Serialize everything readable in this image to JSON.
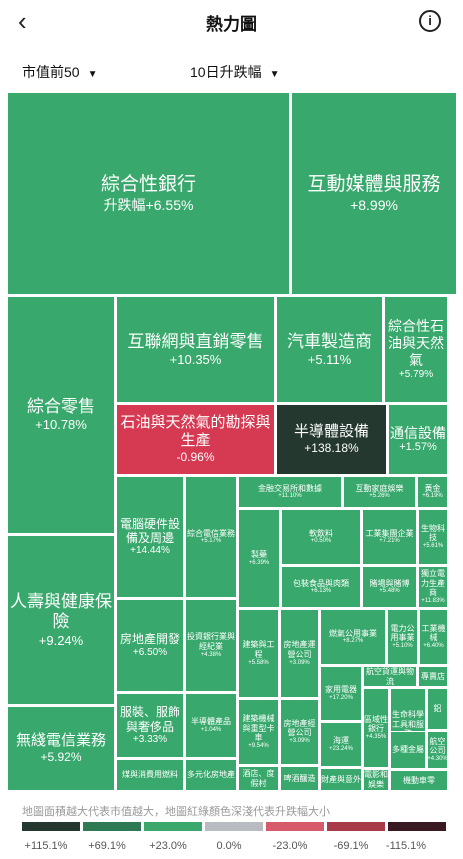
{
  "header": {
    "title": "熱力圖",
    "back_icon": "‹",
    "info_icon": "i"
  },
  "filters": {
    "market_cap": "市值前50",
    "period": "10日升跌幅"
  },
  "tiles": [
    {
      "name": "綜合性銀行",
      "value": "升跌幅+6.55%"
    },
    {
      "name": "互動媒體與服務",
      "value": "+8.99%"
    },
    {
      "name": "綜合零售",
      "value": "+10.78%"
    },
    {
      "name": "互聯網與直銷零售",
      "value": "+10.35%"
    },
    {
      "name": "汽車製造商",
      "value": "+5.11%"
    },
    {
      "name": "綜合性石油與天然氣",
      "value": "+5.79%"
    },
    {
      "name": "石油與天然氣的勘探與生產",
      "value": "-0.96%"
    },
    {
      "name": "半導體設備",
      "value": "+138.18%"
    },
    {
      "name": "通信設備",
      "value": "+1.57%"
    },
    {
      "name": "電腦硬件設備及周邊",
      "value": "+14.44%"
    },
    {
      "name": "綜合電信業務",
      "value": "+5.17%"
    },
    {
      "name": "金融交易所和數據",
      "value": "+11.10%"
    },
    {
      "name": "互動家庭娛樂",
      "value": "+5.26%"
    },
    {
      "name": "黃金",
      "value": "+6.19%"
    },
    {
      "name": "製藥",
      "value": "+6.39%"
    },
    {
      "name": "軟飲料",
      "value": "+0.50%"
    },
    {
      "name": "工業集團企業",
      "value": "+7.21%"
    },
    {
      "name": "生物科技",
      "value": "+5.61%"
    },
    {
      "name": "包裝食品與肉類",
      "value": "+6.13%"
    },
    {
      "name": "賭場與賭博",
      "value": "+5.48%"
    },
    {
      "name": "獨立電力生產商",
      "value": "+11.83%"
    },
    {
      "name": "人壽與健康保險",
      "value": "+9.24%"
    },
    {
      "name": "房地產開發",
      "value": "+6.50%"
    },
    {
      "name": "投資銀行業與經紀業",
      "value": "+4.38%"
    },
    {
      "name": "建築與工程",
      "value": "+5.58%"
    },
    {
      "name": "房地產運營公司",
      "value": "+3.09%"
    },
    {
      "name": "燃氣公用事業",
      "value": "+8.27%"
    },
    {
      "name": "電力公用事業",
      "value": "+5.10%"
    },
    {
      "name": "工業機械",
      "value": "+6.40%"
    },
    {
      "name": "家用電器",
      "value": "+17.20%"
    },
    {
      "name": "航空貨運與物流",
      "value": ""
    },
    {
      "name": "專賣店",
      "value": ""
    },
    {
      "name": "無綫電信業務",
      "value": "+5.92%"
    },
    {
      "name": "服裝、服飾與奢侈品",
      "value": "+3.33%"
    },
    {
      "name": "半導體產品",
      "value": "+1.04%"
    },
    {
      "name": "建築機械與重型卡車",
      "value": "+9.54%"
    },
    {
      "name": "房地產經營公司",
      "value": "+3.09%"
    },
    {
      "name": "海運",
      "value": "+23.24%"
    },
    {
      "name": "區域性銀行",
      "value": "+4.35%"
    },
    {
      "name": "生命科學工具和服務",
      "value": "+0.54%"
    },
    {
      "name": "鋁",
      "value": ""
    },
    {
      "name": "多種金屬",
      "value": ""
    },
    {
      "name": "航空公司",
      "value": "+4.30%"
    },
    {
      "name": "煤與消費用燃料",
      "value": ""
    },
    {
      "name": "多元化房地產",
      "value": ""
    },
    {
      "name": "酒店、度假村",
      "value": ""
    },
    {
      "name": "啤酒釀造",
      "value": ""
    },
    {
      "name": "財產與意外",
      "value": ""
    },
    {
      "name": "電影和娛樂",
      "value": ""
    },
    {
      "name": "機動車零",
      "value": ""
    }
  ],
  "legend": {
    "text": "地圖面積越大代表市值越大，地圖紅綠顏色深淺代表升跌幅大小",
    "labels": [
      "+115.1%",
      "+69.1%",
      "+23.0%",
      "0.0%",
      "-23.0%",
      "-69.1%",
      "-115.1%"
    ],
    "colors": [
      "#24382f",
      "#2e7a55",
      "#3aa86c",
      "#b8bcc0",
      "#d65a6a",
      "#a83a4a",
      "#3a1a22"
    ]
  }
}
